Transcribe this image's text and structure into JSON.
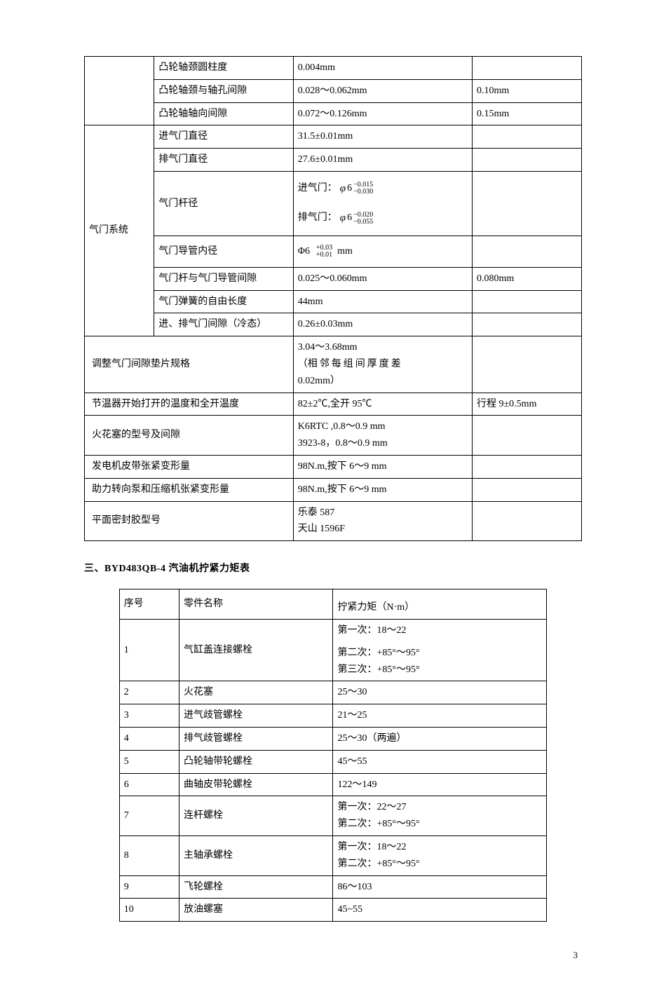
{
  "table1": {
    "col_widths": [
      "14%",
      "28%",
      "36%",
      "22%"
    ],
    "rows": [
      {
        "c0": {
          "text": "",
          "rowspan": 1,
          "omit": true
        },
        "c1": "凸轮轴颈圆柱度",
        "c2": "0.004mm",
        "c3": ""
      },
      {
        "c1": "凸轮轴颈与轴孔间隙",
        "c2": "0.028～0.062mm",
        "c3": "0.10mm"
      },
      {
        "c1": "凸轮轴轴向间隙",
        "c2": "0.072～0.126mm",
        "c3": "0.15mm"
      },
      {
        "c0": {
          "text": "气门系统",
          "rowspan": 7
        },
        "c1": "进气门直径",
        "c2": "31.5±0.01mm",
        "c3": ""
      },
      {
        "c1": "排气门直径",
        "c2": "27.6±0.01mm",
        "c3": ""
      },
      {
        "c1": "气门杆径",
        "c2": "__STEM__",
        "c3": ""
      },
      {
        "c1": "气门导管内径",
        "c2": "__GUIDE__",
        "c3": ""
      },
      {
        "c1": "气门杆与气门导管间隙",
        "c2": "0.025～0.060mm",
        "c3": "0.080mm"
      },
      {
        "c1": "气门弹簧的自由长度",
        "c2": "44mm",
        "c3": ""
      },
      {
        "c1": "进、排气门间隙（冷态）",
        "c2": "0.26±0.03mm",
        "c3": ""
      },
      {
        "c0": {
          "text": "调整气门间隙垫片规格",
          "colspan": 2,
          "pad": true
        },
        "c2": "__SHIM__",
        "c3": ""
      },
      {
        "c0": {
          "text": "节温器开始打开的温度和全开温度",
          "colspan": 2,
          "pad": true
        },
        "c2": "82±2℃,全开 95℃",
        "c3": "行程 9±0.5mm"
      },
      {
        "c0": {
          "text": "火花塞的型号及间隙",
          "colspan": 2,
          "pad": true
        },
        "c2": "__PLUG__",
        "c3": ""
      },
      {
        "c0": {
          "text": "发电机皮带张紧变形量",
          "colspan": 2,
          "pad": true
        },
        "c2": "98N.m,按下 6～9 mm",
        "c3": ""
      },
      {
        "c0": {
          "text": "助力转向泵和压缩机张紧变形量",
          "colspan": 2,
          "pad": true
        },
        "c2": "98N.m,按下 6～9 mm",
        "c3": ""
      },
      {
        "c0": {
          "text": "平面密封胶型号",
          "colspan": 2,
          "pad": true
        },
        "c2": "__SEAL__",
        "c3": ""
      }
    ],
    "stem": {
      "intake_label": "进气门：",
      "exhaust_label": "排气门：",
      "base": "6",
      "intake_up": "−0.015",
      "intake_lo": "−0.030",
      "exhaust_up": "−0.020",
      "exhaust_lo": "−0.055"
    },
    "guide": {
      "base": "Φ6",
      "up": "+0.03",
      "lo": "+0.01",
      "unit": "mm"
    },
    "shim": {
      "l1": "3.04～3.68mm",
      "l2_a": "（",
      "l2_b": "相邻每组间厚度差",
      "l2_c": "",
      "l3": "0.02mm）"
    },
    "plug": {
      "l1": "K6RTC ,0.8～0.9 mm",
      "l2": "3923-8，0.8～0.9 mm"
    },
    "seal": {
      "l1": "乐泰 587",
      "l2": "天山 1596F"
    }
  },
  "section_heading": "三、BYD483QB-4 汽油机拧紧力矩表",
  "table2": {
    "col_widths": [
      "14%",
      "36%",
      "50%"
    ],
    "head": {
      "c1": "序号",
      "c2": "零件名称",
      "c3": "拧紧力矩（N·m）"
    },
    "rows": [
      {
        "n": "1",
        "name": "气缸盖连接螺栓",
        "torque": "__T1__"
      },
      {
        "n": "2",
        "name": "火花塞",
        "torque": "25～30"
      },
      {
        "n": "3",
        "name": "进气歧管螺栓",
        "torque": "21～25"
      },
      {
        "n": "4",
        "name": "排气歧管螺栓",
        "torque": "25～30（两遍）"
      },
      {
        "n": "5",
        "name": "凸轮轴带轮螺栓",
        "torque": "45～55"
      },
      {
        "n": "6",
        "name": "曲轴皮带轮螺栓",
        "torque": "122～149"
      },
      {
        "n": "7",
        "name": "连杆螺栓",
        "torque": "__T7__"
      },
      {
        "n": "8",
        "name": "主轴承螺栓",
        "torque": "__T8__"
      },
      {
        "n": "9",
        "name": "飞轮螺栓",
        "torque": "86～103"
      },
      {
        "n": "10",
        "name": "放油螺塞",
        "torque": "45~55"
      }
    ],
    "t1": {
      "l1": "第一次：18～22",
      "l2": "第二次：+85°～95°",
      "l3": "第三次：+85°～95°"
    },
    "t7": {
      "l1": "第一次：22～27",
      "l2": "第二次：+85°～95°"
    },
    "t8": {
      "l1": "第一次：18～22",
      "l2": "第二次：+85°～95°"
    }
  },
  "page_number": "3"
}
